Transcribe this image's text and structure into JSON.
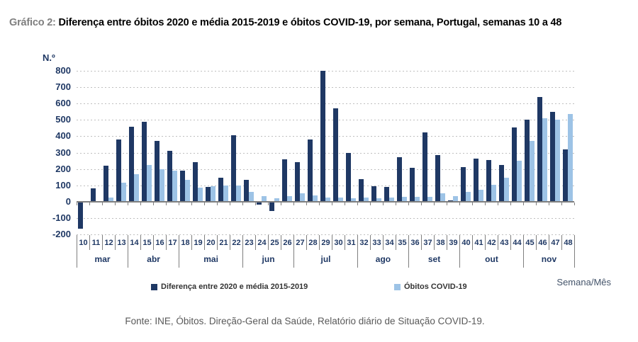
{
  "page": {
    "title_prefix": "Gráfico 2:",
    "title_text": "Diferença entre óbitos 2020 e média 2015-2019 e óbitos COVID-19, por semana, Portugal, semanas 10 a 48",
    "footer": "Fonte: INE, Óbitos. Direção-Geral da Saúde, Relatório diário de Situação COVID-19."
  },
  "chart_data": {
    "type": "bar",
    "title": "Diferença entre óbitos 2020 e média 2015-2019 e óbitos COVID-19, por semana, Portugal, semanas 10 a 48",
    "y_axis_unit_label": "N.º",
    "x_axis_label": "Semana/Mês",
    "ylim": [
      -200,
      800
    ],
    "ytick_step": 100,
    "grid": "horizontal-dashed",
    "legend_position": "bottom",
    "categories": [
      10,
      11,
      12,
      13,
      14,
      15,
      16,
      17,
      18,
      19,
      20,
      21,
      22,
      23,
      24,
      25,
      26,
      27,
      28,
      29,
      30,
      31,
      32,
      33,
      34,
      35,
      36,
      37,
      38,
      39,
      40,
      41,
      42,
      43,
      44,
      45,
      46,
      47,
      48
    ],
    "month_groups": [
      {
        "label": "mar",
        "weeks": 4
      },
      {
        "label": "abr",
        "weeks": 4
      },
      {
        "label": "mai",
        "weeks": 5
      },
      {
        "label": "jun",
        "weeks": 4
      },
      {
        "label": "jul",
        "weeks": 5
      },
      {
        "label": "ago",
        "weeks": 4
      },
      {
        "label": "set",
        "weeks": 4
      },
      {
        "label": "out",
        "weeks": 5
      },
      {
        "label": "nov",
        "weeks": 4
      }
    ],
    "series": [
      {
        "name": "Diferença entre 2020 e média 2015-2019",
        "color": "#1f3864",
        "values": [
          -160,
          80,
          220,
          380,
          460,
          490,
          370,
          310,
          190,
          240,
          90,
          145,
          405,
          135,
          -15,
          -55,
          260,
          240,
          380,
          800,
          570,
          300,
          140,
          95,
          90,
          270,
          205,
          425,
          285,
          10,
          210,
          265,
          255,
          225,
          455,
          500,
          640,
          550,
          320
        ]
      },
      {
        "name": "Óbitos COVID-19",
        "color": "#9dc3e6",
        "values": [
          0,
          2,
          25,
          115,
          170,
          225,
          200,
          190,
          135,
          85,
          95,
          100,
          100,
          60,
          35,
          20,
          35,
          50,
          40,
          25,
          25,
          20,
          25,
          20,
          25,
          30,
          30,
          30,
          50,
          35,
          60,
          75,
          105,
          145,
          250,
          370,
          510,
          500,
          535
        ]
      }
    ]
  },
  "colors": {
    "dark_bar": "#1f3864",
    "light_bar": "#9dc3e6",
    "axis_text": "#1f3864",
    "axis_line": "#7f7f7f",
    "gridline": "#bfbfbf",
    "title_prefix": "#7f7f7f",
    "footer_text": "#595959",
    "legend_text": "#333333"
  }
}
